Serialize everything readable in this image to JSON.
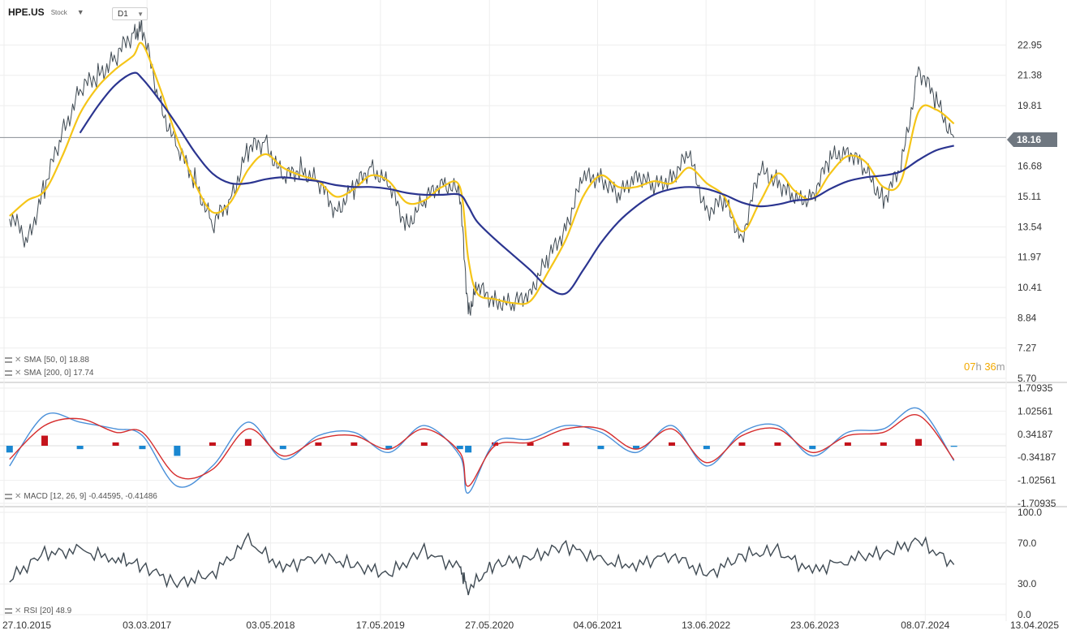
{
  "header": {
    "symbol": "HPE.US",
    "type": "Stock",
    "timeframe": "D1"
  },
  "legend": {
    "sma50": {
      "label": "SMA",
      "params": "[50,  0]",
      "value": "18.88"
    },
    "sma200": {
      "label": "SMA",
      "params": "[200,  0]",
      "value": "17.74"
    },
    "macd": {
      "label": "MACD",
      "params": "[12,  26,  9]",
      "value": "-0.44595,  -0.41486"
    },
    "rsi": {
      "label": "RSI",
      "params": "[20]",
      "value": "48.9"
    }
  },
  "timer": {
    "h": "07",
    "h_unit": "h",
    "m": "36",
    "m_unit": "m"
  },
  "colors": {
    "price": "#3f4a53",
    "sma50": "#f5c518",
    "sma200": "#2b3590",
    "macd_line": "#4a90d9",
    "signal_line": "#d62d2d",
    "hist_pos": "#c4141c",
    "hist_neg": "#1a87d1",
    "grid": "#eeeeee",
    "axis_text": "#333333"
  },
  "chart_data": [
    {
      "type": "line",
      "title": "HPE.US",
      "x_ticks": [
        "27.10.2015",
        "03.03.2017",
        "03.05.2018",
        "17.05.2019",
        "27.05.2020",
        "04.06.2021",
        "13.06.2022",
        "23.06.2023",
        "08.07.2024",
        "13.04.2025"
      ],
      "y_ticks": [
        "22.95",
        "21.38",
        "19.81",
        "18.16",
        "16.68",
        "15.11",
        "13.54",
        "11.97",
        "10.41",
        "8.84",
        "7.27",
        "5.70"
      ],
      "ylim": [
        5.7,
        24.52
      ],
      "current_price": "18.16",
      "x": [
        "2015-11",
        "2016-01",
        "2016-03",
        "2016-05",
        "2016-07",
        "2016-09",
        "2016-11",
        "2017-01",
        "2017-02",
        "2017-04",
        "2017-06",
        "2017-08",
        "2017-10",
        "2017-12",
        "2018-02",
        "2018-04",
        "2018-06",
        "2018-08",
        "2018-10",
        "2018-12",
        "2019-02",
        "2019-04",
        "2019-06",
        "2019-08",
        "2019-10",
        "2019-12",
        "2020-02",
        "2020-03",
        "2020-04",
        "2020-06",
        "2020-08",
        "2020-10",
        "2020-12",
        "2021-02",
        "2021-04",
        "2021-06",
        "2021-08",
        "2021-10",
        "2021-12",
        "2022-02",
        "2022-04",
        "2022-06",
        "2022-08",
        "2022-10",
        "2022-12",
        "2023-02",
        "2023-04",
        "2023-06",
        "2023-08",
        "2023-10",
        "2023-12",
        "2024-02",
        "2024-04",
        "2024-06",
        "2024-08",
        "2024-10"
      ],
      "series": [
        {
          "name": "Price",
          "values": [
            14.2,
            12.8,
            15.6,
            18.4,
            20.6,
            21.4,
            22.3,
            23.6,
            23.8,
            20.0,
            17.6,
            16.0,
            13.6,
            15.0,
            17.5,
            18.0,
            16.0,
            16.6,
            15.8,
            14.4,
            15.5,
            16.7,
            15.6,
            13.7,
            14.8,
            16.0,
            15.2,
            9.2,
            10.3,
            9.8,
            9.4,
            10.3,
            11.8,
            13.6,
            16.0,
            16.2,
            15.0,
            16.4,
            15.5,
            16.2,
            17.2,
            14.4,
            14.8,
            13.0,
            16.4,
            16.0,
            14.8,
            15.2,
            17.0,
            17.6,
            16.4,
            15.0,
            16.5,
            21.8,
            20.0,
            18.16
          ]
        },
        {
          "name": "SMA 50",
          "values": [
            14.1,
            14.9,
            15.4,
            17.2,
            19.4,
            20.8,
            21.7,
            22.4,
            23.0,
            20.8,
            18.1,
            15.8,
            14.3,
            14.8,
            16.5,
            17.3,
            16.6,
            16.2,
            15.9,
            15.1,
            15.5,
            16.2,
            15.9,
            14.8,
            14.9,
            15.6,
            15.6,
            11.9,
            10.1,
            9.8,
            9.6,
            9.7,
            11.2,
            12.9,
            15.1,
            16.2,
            15.6,
            15.6,
            15.9,
            15.8,
            16.6,
            15.8,
            15.1,
            13.3,
            14.8,
            16.3,
            15.4,
            15.0,
            16.3,
            17.2,
            16.9,
            15.6,
            15.9,
            19.5,
            19.6,
            18.88
          ]
        },
        {
          "name": "SMA 200",
          "values": [
            null,
            null,
            null,
            null,
            18.4,
            19.8,
            20.9,
            21.5,
            21.2,
            20.1,
            18.8,
            17.4,
            16.3,
            15.8,
            15.8,
            16.0,
            16.1,
            16.0,
            15.9,
            15.7,
            15.6,
            15.6,
            15.5,
            15.3,
            15.2,
            15.2,
            15.2,
            14.6,
            13.8,
            12.9,
            12.1,
            11.3,
            10.4,
            10.1,
            11.3,
            12.7,
            13.8,
            14.6,
            15.2,
            15.5,
            15.6,
            15.5,
            15.2,
            14.8,
            14.6,
            14.7,
            14.9,
            15.0,
            15.5,
            15.9,
            16.1,
            16.2,
            16.4,
            17.0,
            17.5,
            17.74
          ]
        }
      ]
    },
    {
      "type": "bar",
      "title": "MACD",
      "y_ticks": [
        "1.70935",
        "1.02561",
        "0.34187",
        "-0.34187",
        "-1.02561",
        "-1.70935"
      ],
      "ylim": [
        -1.70935,
        1.70935
      ],
      "x": [
        "2015-11",
        "2016-03",
        "2016-07",
        "2016-11",
        "2017-02",
        "2017-06",
        "2017-10",
        "2018-02",
        "2018-06",
        "2018-10",
        "2019-02",
        "2019-06",
        "2019-10",
        "2020-02",
        "2020-03",
        "2020-06",
        "2020-10",
        "2021-02",
        "2021-06",
        "2021-10",
        "2022-02",
        "2022-06",
        "2022-10",
        "2023-02",
        "2023-06",
        "2023-10",
        "2024-02",
        "2024-06",
        "2024-10"
      ],
      "series": [
        {
          "name": "MACD",
          "values": [
            -0.6,
            0.9,
            0.7,
            0.5,
            0.3,
            -1.2,
            -0.6,
            0.7,
            -0.4,
            0.3,
            0.4,
            -0.2,
            0.6,
            -0.3,
            -1.4,
            0.1,
            0.2,
            0.6,
            0.4,
            -0.2,
            0.6,
            -0.6,
            0.4,
            0.6,
            -0.3,
            0.4,
            0.5,
            1.1,
            -0.44595
          ]
        },
        {
          "name": "Signal",
          "values": [
            -0.4,
            0.6,
            0.8,
            0.4,
            0.4,
            -0.9,
            -0.7,
            0.5,
            -0.3,
            0.2,
            0.3,
            -0.1,
            0.5,
            -0.2,
            -1.2,
            0.0,
            0.1,
            0.5,
            0.5,
            -0.1,
            0.5,
            -0.5,
            0.3,
            0.5,
            -0.2,
            0.3,
            0.4,
            0.9,
            -0.41486
          ]
        }
      ]
    },
    {
      "type": "line",
      "title": "RSI",
      "y_ticks": [
        "100.0",
        "70.0",
        "30.0",
        "0.0"
      ],
      "ylim": [
        0,
        100
      ],
      "x": [
        "2015-11",
        "2016-03",
        "2016-07",
        "2016-11",
        "2017-02",
        "2017-06",
        "2017-10",
        "2018-02",
        "2018-06",
        "2018-10",
        "2019-02",
        "2019-06",
        "2019-10",
        "2020-02",
        "2020-03",
        "2020-06",
        "2020-10",
        "2021-02",
        "2021-06",
        "2021-10",
        "2022-02",
        "2022-06",
        "2022-10",
        "2023-02",
        "2023-06",
        "2023-10",
        "2024-02",
        "2024-06",
        "2024-10"
      ],
      "series": [
        {
          "name": "RSI",
          "values": [
            35,
            60,
            62,
            55,
            48,
            30,
            40,
            72,
            45,
            58,
            48,
            40,
            62,
            45,
            25,
            50,
            55,
            68,
            52,
            48,
            60,
            38,
            58,
            62,
            42,
            55,
            60,
            72,
            48.9
          ]
        }
      ]
    }
  ]
}
